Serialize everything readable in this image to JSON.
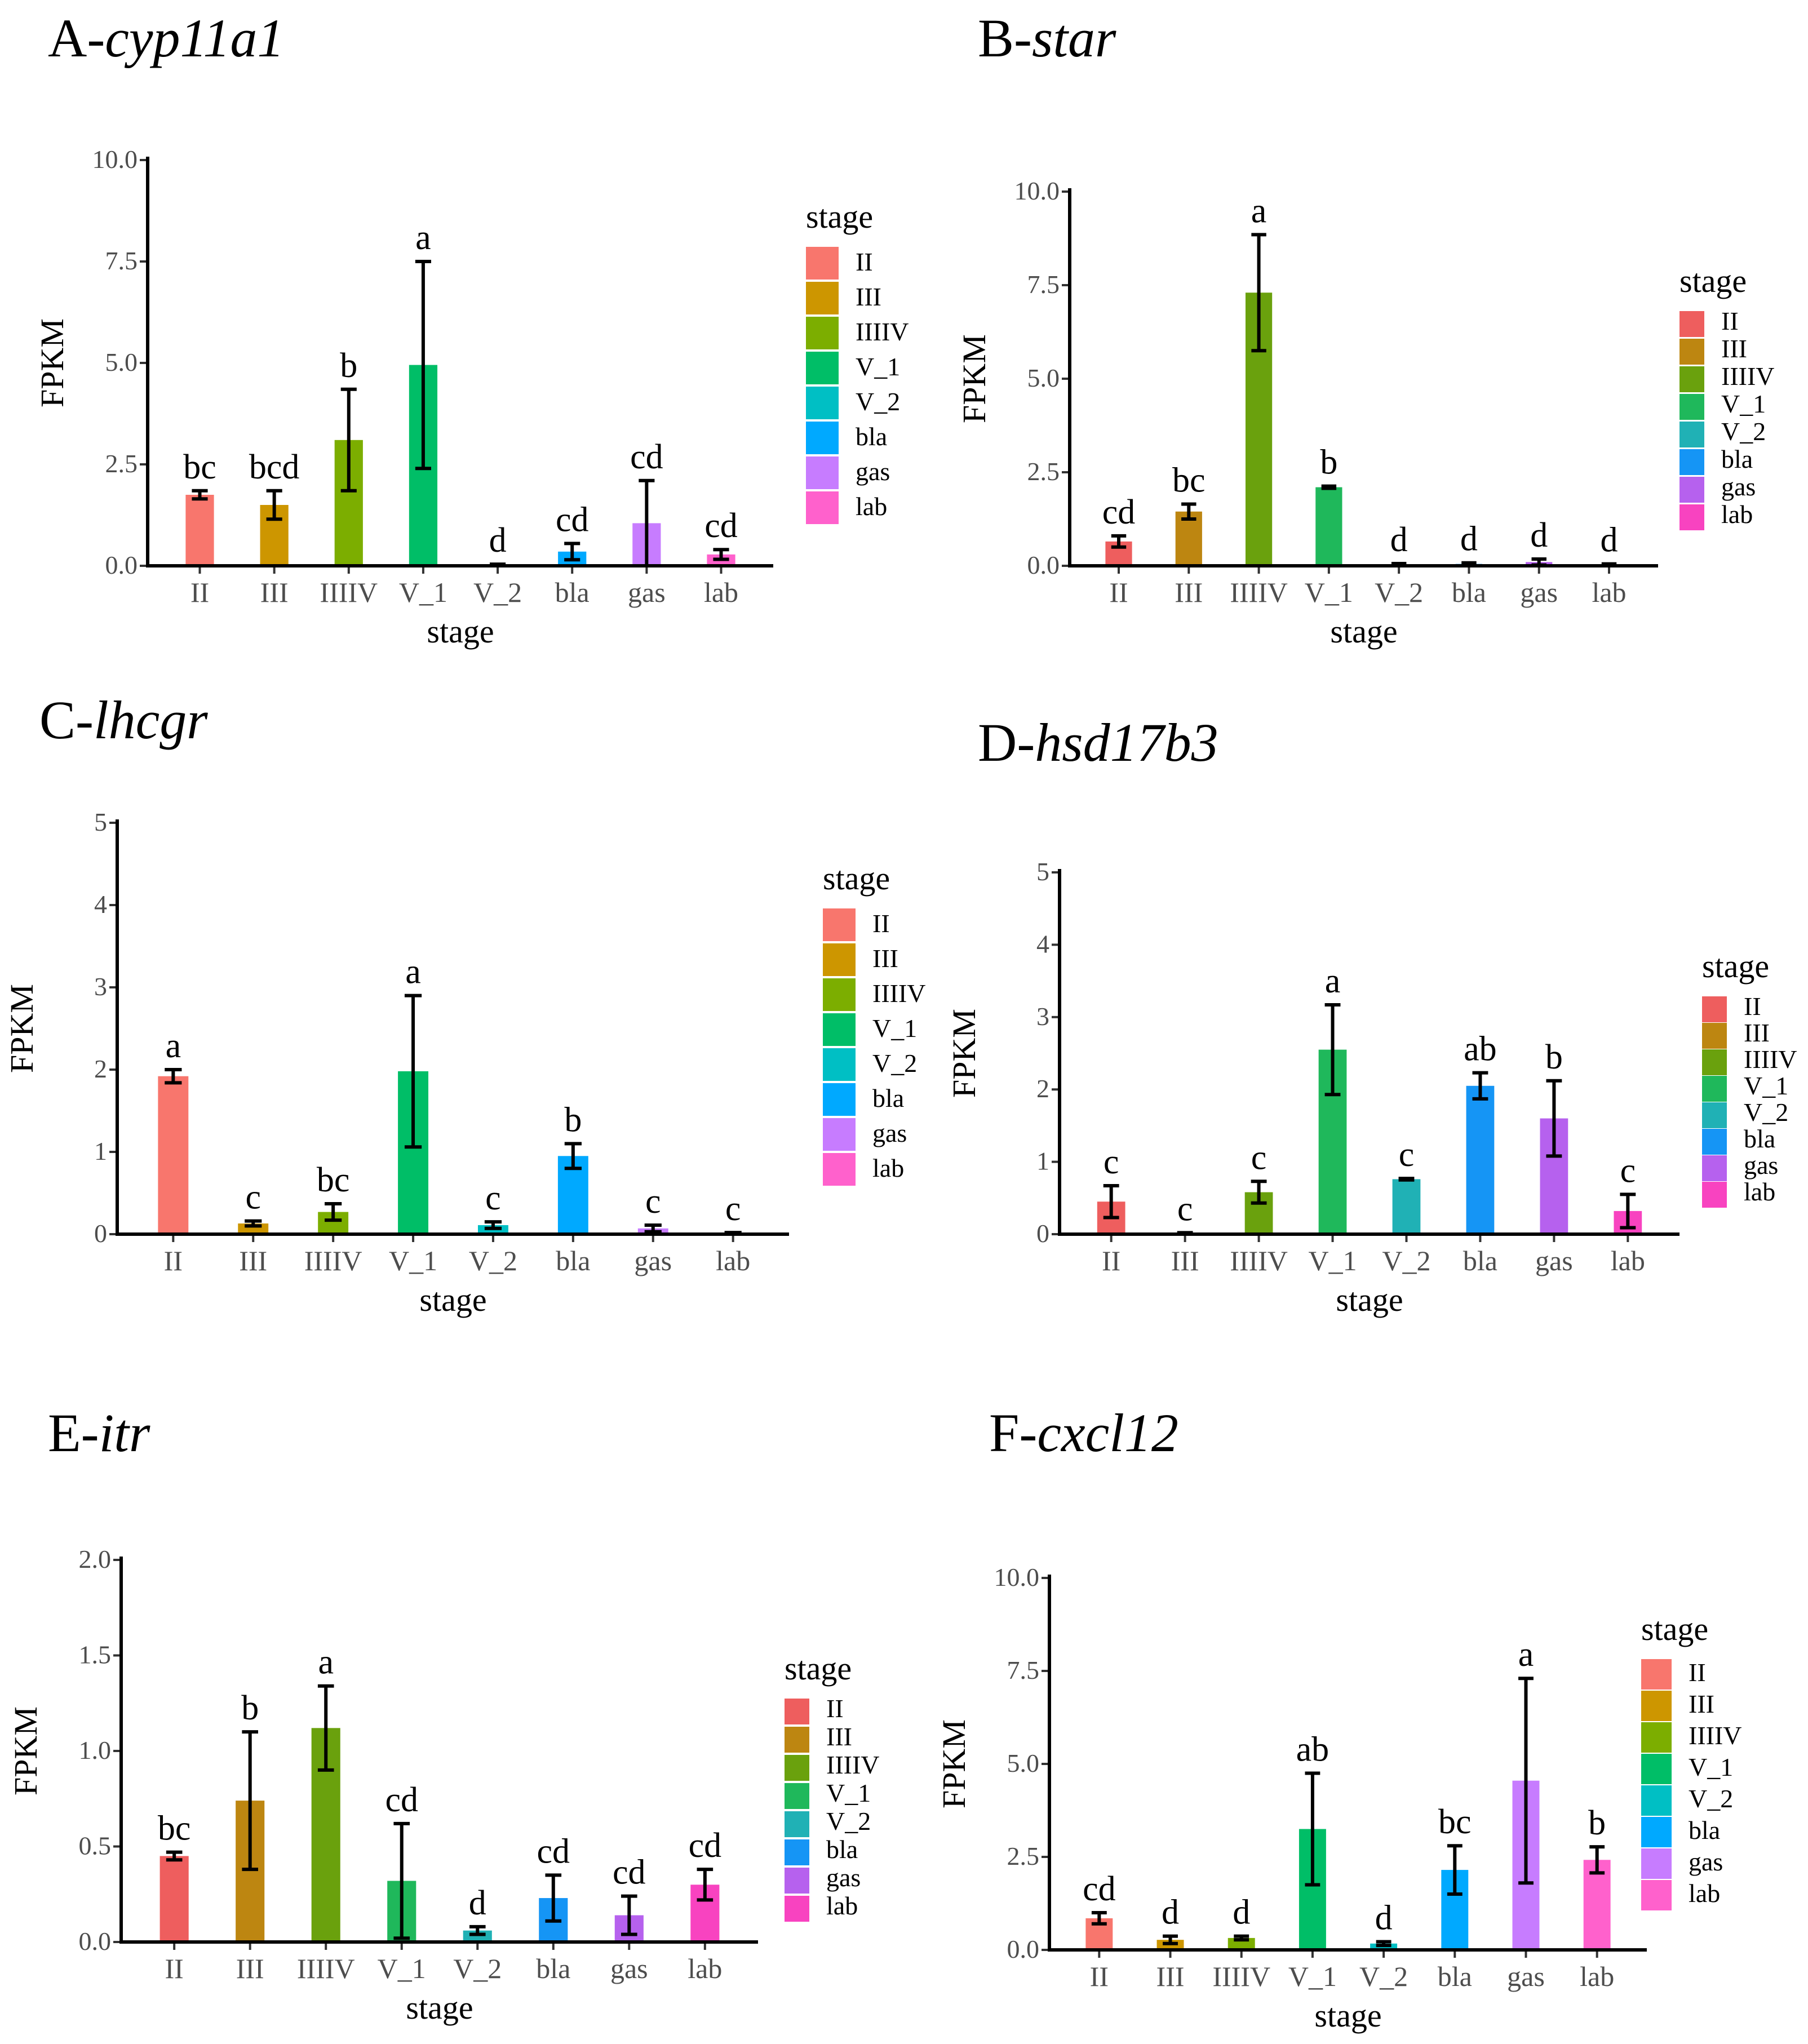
{
  "figure": {
    "xlabel": "stage",
    "ylabel": "FPKM",
    "legend_title": "stage",
    "stages": [
      "II",
      "III",
      "IIIIV",
      "V_1",
      "V_2",
      "bla",
      "gas",
      "lab"
    ]
  },
  "palettes": {
    "light": [
      "#F8766D",
      "#CD9600",
      "#7CAE00",
      "#00BE67",
      "#00BFC4",
      "#00A9FF",
      "#C77CFF",
      "#FF61CC"
    ],
    "dark": [
      "#EE5E5E",
      "#BD8611",
      "#6AA10D",
      "#1FB85B",
      "#20B1B5",
      "#1595F5",
      "#B661EE",
      "#F843C0"
    ]
  },
  "chart_data": [
    {
      "id": "A",
      "prefix": "A-",
      "gene": "cyp11a1",
      "type": "bar",
      "palette": "light",
      "categories": [
        "II",
        "III",
        "IIIIV",
        "V_1",
        "V_2",
        "bla",
        "gas",
        "lab"
      ],
      "values": [
        1.75,
        1.5,
        3.1,
        4.95,
        0.02,
        0.35,
        1.05,
        0.28
      ],
      "errors": [
        0.1,
        0.35,
        1.25,
        2.55,
        0.02,
        0.2,
        1.05,
        0.12
      ],
      "significance": [
        "bc",
        "bcd",
        "b",
        "a",
        "d",
        "cd",
        "cd",
        "cd"
      ],
      "ylim": [
        0,
        10
      ],
      "yticks": [
        "0.0",
        "2.5",
        "5.0",
        "7.5",
        "10.0"
      ],
      "ytick_values": [
        0,
        2.5,
        5,
        7.5,
        10
      ],
      "xlabel": "stage",
      "ylabel": "FPKM",
      "legend_title": "stage"
    },
    {
      "id": "B",
      "prefix": "B-",
      "gene": "star",
      "type": "bar",
      "palette": "dark",
      "categories": [
        "II",
        "III",
        "IIIIV",
        "V_1",
        "V_2",
        "bla",
        "gas",
        "lab"
      ],
      "values": [
        0.65,
        1.45,
        7.3,
        2.1,
        0.03,
        0.05,
        0.1,
        0.03
      ],
      "errors": [
        0.15,
        0.2,
        1.55,
        0.03,
        0.03,
        0.03,
        0.08,
        0.02
      ],
      "significance": [
        "cd",
        "bc",
        "a",
        "b",
        "d",
        "d",
        "d",
        "d"
      ],
      "ylim": [
        0,
        10
      ],
      "yticks": [
        "0.0",
        "2.5",
        "5.0",
        "7.5",
        "10.0"
      ],
      "ytick_values": [
        0,
        2.5,
        5,
        7.5,
        10
      ],
      "xlabel": "stage",
      "ylabel": "FPKM",
      "legend_title": "stage"
    },
    {
      "id": "C",
      "prefix": "C-",
      "gene": "lhcgr",
      "type": "bar",
      "palette": "light",
      "categories": [
        "II",
        "III",
        "IIIIV",
        "V_1",
        "V_2",
        "bla",
        "gas",
        "lab"
      ],
      "values": [
        1.92,
        0.13,
        0.27,
        1.98,
        0.11,
        0.95,
        0.07,
        0.01
      ],
      "errors": [
        0.08,
        0.03,
        0.1,
        0.92,
        0.04,
        0.15,
        0.04,
        0.01
      ],
      "significance": [
        "a",
        "c",
        "bc",
        "a",
        "c",
        "b",
        "c",
        "c"
      ],
      "ylim": [
        0,
        5
      ],
      "yticks": [
        "0",
        "1",
        "2",
        "3",
        "4",
        "5"
      ],
      "ytick_values": [
        0,
        1,
        2,
        3,
        4,
        5
      ],
      "xlabel": "stage",
      "ylabel": "FPKM",
      "legend_title": "stage"
    },
    {
      "id": "D",
      "prefix": "D-",
      "gene": "hsd17b3",
      "type": "bar",
      "palette": "dark",
      "categories": [
        "II",
        "III",
        "IIIIV",
        "V_1",
        "V_2",
        "bla",
        "gas",
        "lab"
      ],
      "values": [
        0.45,
        0.01,
        0.58,
        2.55,
        0.76,
        2.05,
        1.6,
        0.32
      ],
      "errors": [
        0.22,
        0.01,
        0.15,
        0.62,
        0.01,
        0.18,
        0.52,
        0.23
      ],
      "significance": [
        "c",
        "c",
        "c",
        "a",
        "c",
        "ab",
        "b",
        "c"
      ],
      "ylim": [
        0,
        5
      ],
      "yticks": [
        "0",
        "1",
        "2",
        "3",
        "4",
        "5"
      ],
      "ytick_values": [
        0,
        1,
        2,
        3,
        4,
        5
      ],
      "xlabel": "stage",
      "ylabel": "FPKM",
      "legend_title": "stage"
    },
    {
      "id": "E",
      "prefix": "E-",
      "gene": "itr",
      "type": "bar",
      "palette": "dark",
      "categories": [
        "II",
        "III",
        "IIIIV",
        "V_1",
        "V_2",
        "bla",
        "gas",
        "lab"
      ],
      "values": [
        0.45,
        0.74,
        1.12,
        0.32,
        0.06,
        0.23,
        0.14,
        0.3
      ],
      "errors": [
        0.02,
        0.36,
        0.22,
        0.3,
        0.02,
        0.12,
        0.1,
        0.08
      ],
      "significance": [
        "bc",
        "b",
        "a",
        "cd",
        "d",
        "cd",
        "cd",
        "cd"
      ],
      "ylim": [
        0,
        2
      ],
      "yticks": [
        "0.0",
        "0.5",
        "1.0",
        "1.5",
        "2.0"
      ],
      "ytick_values": [
        0,
        0.5,
        1,
        1.5,
        2
      ],
      "xlabel": "stage",
      "ylabel": "FPKM",
      "legend_title": "stage"
    },
    {
      "id": "F",
      "prefix": "F-",
      "gene": "cxcl12",
      "type": "bar",
      "palette": "light",
      "categories": [
        "II",
        "III",
        "IIIIV",
        "V_1",
        "V_2",
        "bla",
        "gas",
        "lab"
      ],
      "values": [
        0.85,
        0.27,
        0.32,
        3.25,
        0.17,
        2.15,
        4.55,
        2.42
      ],
      "errors": [
        0.15,
        0.1,
        0.05,
        1.5,
        0.05,
        0.65,
        2.75,
        0.35
      ],
      "significance": [
        "cd",
        "d",
        "d",
        "ab",
        "d",
        "bc",
        "a",
        "b"
      ],
      "ylim": [
        0,
        10
      ],
      "yticks": [
        "0.0",
        "2.5",
        "5.0",
        "7.5",
        "10.0"
      ],
      "ytick_values": [
        0,
        2.5,
        5,
        7.5,
        10
      ],
      "xlabel": "stage",
      "ylabel": "FPKM",
      "legend_title": "stage"
    }
  ]
}
